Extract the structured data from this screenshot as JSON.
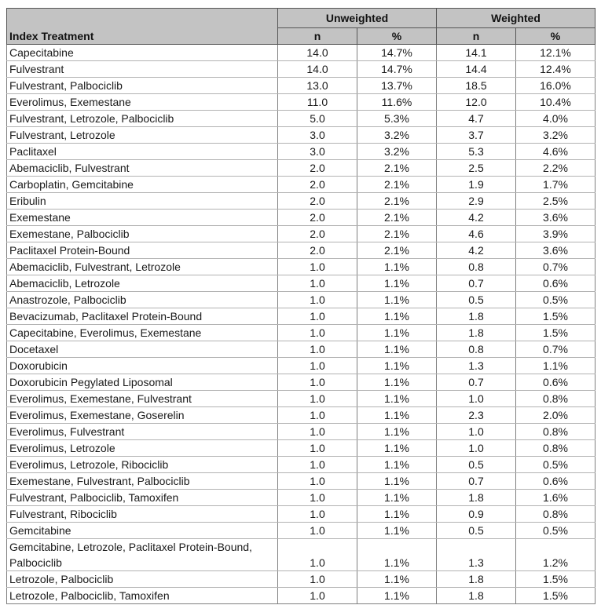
{
  "table": {
    "index_header": "Index Treatment",
    "groups": [
      {
        "label": "Unweighted",
        "columns": [
          "n",
          "%"
        ]
      },
      {
        "label": "Weighted",
        "columns": [
          "n",
          "%"
        ]
      }
    ],
    "rows": [
      {
        "treatment": "Capecitabine",
        "values": [
          "14.0",
          "14.7%",
          "14.1",
          "12.1%"
        ]
      },
      {
        "treatment": "Fulvestrant",
        "values": [
          "14.0",
          "14.7%",
          "14.4",
          "12.4%"
        ]
      },
      {
        "treatment": "Fulvestrant, Palbociclib",
        "values": [
          "13.0",
          "13.7%",
          "18.5",
          "16.0%"
        ]
      },
      {
        "treatment": "Everolimus, Exemestane",
        "values": [
          "11.0",
          "11.6%",
          "12.0",
          "10.4%"
        ]
      },
      {
        "treatment": "Fulvestrant, Letrozole, Palbociclib",
        "values": [
          "5.0",
          "5.3%",
          "4.7",
          "4.0%"
        ]
      },
      {
        "treatment": "Fulvestrant, Letrozole",
        "values": [
          "3.0",
          "3.2%",
          "3.7",
          "3.2%"
        ]
      },
      {
        "treatment": "Paclitaxel",
        "values": [
          "3.0",
          "3.2%",
          "5.3",
          "4.6%"
        ]
      },
      {
        "treatment": "Abemaciclib, Fulvestrant",
        "values": [
          "2.0",
          "2.1%",
          "2.5",
          "2.2%"
        ]
      },
      {
        "treatment": "Carboplatin, Gemcitabine",
        "values": [
          "2.0",
          "2.1%",
          "1.9",
          "1.7%"
        ]
      },
      {
        "treatment": "Eribulin",
        "values": [
          "2.0",
          "2.1%",
          "2.9",
          "2.5%"
        ]
      },
      {
        "treatment": "Exemestane",
        "values": [
          "2.0",
          "2.1%",
          "4.2",
          "3.6%"
        ]
      },
      {
        "treatment": "Exemestane, Palbociclib",
        "values": [
          "2.0",
          "2.1%",
          "4.6",
          "3.9%"
        ]
      },
      {
        "treatment": "Paclitaxel Protein-Bound",
        "values": [
          "2.0",
          "2.1%",
          "4.2",
          "3.6%"
        ]
      },
      {
        "treatment": "Abemaciclib, Fulvestrant, Letrozole",
        "values": [
          "1.0",
          "1.1%",
          "0.8",
          "0.7%"
        ]
      },
      {
        "treatment": "Abemaciclib, Letrozole",
        "values": [
          "1.0",
          "1.1%",
          "0.7",
          "0.6%"
        ]
      },
      {
        "treatment": "Anastrozole, Palbociclib",
        "values": [
          "1.0",
          "1.1%",
          "0.5",
          "0.5%"
        ]
      },
      {
        "treatment": "Bevacizumab, Paclitaxel Protein-Bound",
        "values": [
          "1.0",
          "1.1%",
          "1.8",
          "1.5%"
        ]
      },
      {
        "treatment": "Capecitabine, Everolimus, Exemestane",
        "values": [
          "1.0",
          "1.1%",
          "1.8",
          "1.5%"
        ]
      },
      {
        "treatment": "Docetaxel",
        "values": [
          "1.0",
          "1.1%",
          "0.8",
          "0.7%"
        ]
      },
      {
        "treatment": "Doxorubicin",
        "values": [
          "1.0",
          "1.1%",
          "1.3",
          "1.1%"
        ]
      },
      {
        "treatment": "Doxorubicin Pegylated Liposomal",
        "values": [
          "1.0",
          "1.1%",
          "0.7",
          "0.6%"
        ]
      },
      {
        "treatment": "Everolimus, Exemestane, Fulvestrant",
        "values": [
          "1.0",
          "1.1%",
          "1.0",
          "0.8%"
        ]
      },
      {
        "treatment": "Everolimus, Exemestane, Goserelin",
        "values": [
          "1.0",
          "1.1%",
          "2.3",
          "2.0%"
        ]
      },
      {
        "treatment": "Everolimus, Fulvestrant",
        "values": [
          "1.0",
          "1.1%",
          "1.0",
          "0.8%"
        ]
      },
      {
        "treatment": "Everolimus, Letrozole",
        "values": [
          "1.0",
          "1.1%",
          "1.0",
          "0.8%"
        ]
      },
      {
        "treatment": "Everolimus, Letrozole, Ribociclib",
        "values": [
          "1.0",
          "1.1%",
          "0.5",
          "0.5%"
        ]
      },
      {
        "treatment": "Exemestane, Fulvestrant, Palbociclib",
        "values": [
          "1.0",
          "1.1%",
          "0.7",
          "0.6%"
        ]
      },
      {
        "treatment": "Fulvestrant, Palbociclib, Tamoxifen",
        "values": [
          "1.0",
          "1.1%",
          "1.8",
          "1.6%"
        ]
      },
      {
        "treatment": "Fulvestrant, Ribociclib",
        "values": [
          "1.0",
          "1.1%",
          "0.9",
          "0.8%"
        ]
      },
      {
        "treatment": "Gemcitabine",
        "values": [
          "1.0",
          "1.1%",
          "0.5",
          "0.5%"
        ]
      },
      {
        "treatment": "Gemcitabine, Letrozole, Paclitaxel Protein-Bound, Palbociclib",
        "values": [
          "1.0",
          "1.1%",
          "1.3",
          "1.2%"
        ]
      },
      {
        "treatment": "Letrozole, Palbociclib",
        "values": [
          "1.0",
          "1.1%",
          "1.8",
          "1.5%"
        ]
      },
      {
        "treatment": "Letrozole, Palbociclib, Tamoxifen",
        "values": [
          "1.0",
          "1.1%",
          "1.8",
          "1.5%"
        ]
      }
    ]
  },
  "colors": {
    "header_bg": "#c3c3c3",
    "row_bg": "#ffffff",
    "border_dark": "#545454",
    "border_vertical": "#7f7f7f",
    "border_horizontal": "#b2b2b2",
    "text": "#1a1a1a"
  }
}
